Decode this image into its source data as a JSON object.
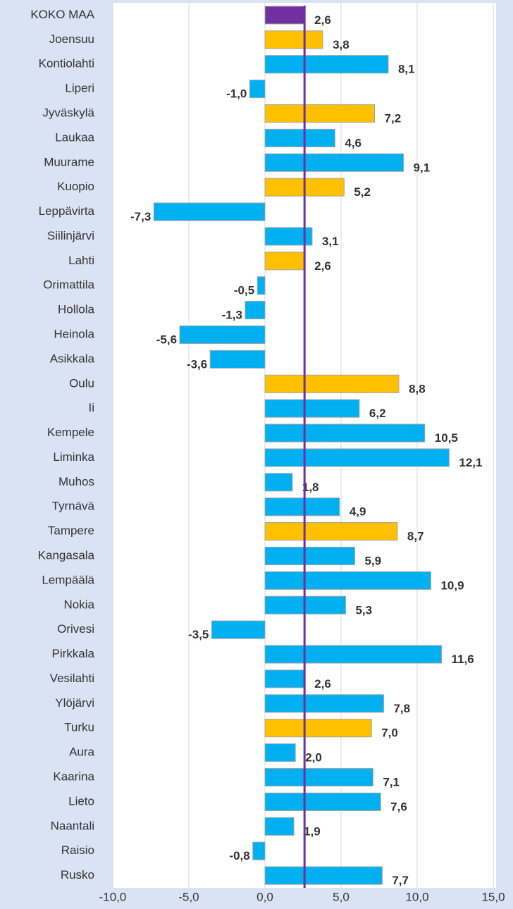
{
  "chart_data": {
    "type": "hbar",
    "categories": [
      "KOKO MAA",
      "Joensuu",
      "Kontiolahti",
      "Liperi",
      "Jyväskylä",
      "Laukaa",
      "Muurame",
      "Kuopio",
      "Leppävirta",
      "Siilinjärvi",
      "Lahti",
      "Orimattila",
      "Hollola",
      "Heinola",
      "Asikkala",
      "Oulu",
      "Ii",
      "Kempele",
      "Liminka",
      "Muhos",
      "Tyrnävä",
      "Tampere",
      "Kangasala",
      "Lempäälä",
      "Nokia",
      "Orivesi",
      "Pirkkala",
      "Vesilahti",
      "Ylöjärvi",
      "Turku",
      "Aura",
      "Kaarina",
      "Lieto",
      "Naantali",
      "Raisio",
      "Rusko"
    ],
    "values": [
      2.6,
      3.8,
      8.1,
      -1.0,
      7.2,
      4.6,
      9.1,
      5.2,
      -7.3,
      3.1,
      2.6,
      -0.5,
      -1.3,
      -5.6,
      -3.6,
      8.8,
      6.2,
      10.5,
      12.1,
      1.8,
      4.9,
      8.7,
      5.9,
      10.9,
      5.3,
      -3.5,
      11.6,
      2.6,
      7.8,
      7.0,
      2.0,
      7.1,
      7.6,
      1.9,
      -0.8,
      7.7
    ],
    "value_labels": [
      "2,6",
      "3,8",
      "8,1",
      "-1,0",
      "7,2",
      "4,6",
      "9,1",
      "5,2",
      "-7,3",
      "3,1",
      "2,6",
      "-0,5",
      "-1,3",
      "-5,6",
      "-3,6",
      "8,8",
      "6,2",
      "10,5",
      "12,1",
      "1,8",
      "4,9",
      "8,7",
      "5,9",
      "10,9",
      "5,3",
      "-3,5",
      "11,6",
      "2,6",
      "7,8",
      "7,0",
      "2,0",
      "7,1",
      "7,6",
      "1,9",
      "-0,8",
      "7,7"
    ],
    "colors": [
      "#7030a0",
      "#ffc000",
      "#00b0f0",
      "#00b0f0",
      "#ffc000",
      "#00b0f0",
      "#00b0f0",
      "#ffc000",
      "#00b0f0",
      "#00b0f0",
      "#ffc000",
      "#00b0f0",
      "#00b0f0",
      "#00b0f0",
      "#00b0f0",
      "#ffc000",
      "#00b0f0",
      "#00b0f0",
      "#00b0f0",
      "#00b0f0",
      "#00b0f0",
      "#ffc000",
      "#00b0f0",
      "#00b0f0",
      "#00b0f0",
      "#00b0f0",
      "#00b0f0",
      "#00b0f0",
      "#00b0f0",
      "#ffc000",
      "#00b0f0",
      "#00b0f0",
      "#00b0f0",
      "#00b0f0",
      "#00b0f0",
      "#00b0f0"
    ],
    "reference_color": "#7030a0",
    "xlim": [
      -10,
      15
    ],
    "xticks": [
      {
        "value": -10,
        "label": "-10,0"
      },
      {
        "value": -5,
        "label": "-5,0"
      },
      {
        "value": 0,
        "label": "0,0"
      },
      {
        "value": 5,
        "label": "5,0"
      },
      {
        "value": 10,
        "label": "10,0"
      },
      {
        "value": 15,
        "label": "15,0"
      }
    ],
    "grid": true
  }
}
